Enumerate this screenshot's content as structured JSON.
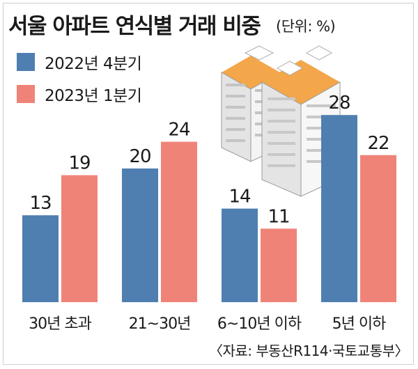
{
  "header": {
    "title": "서울 아파트 연식별 거래 비중",
    "unit": "(단위: %)"
  },
  "legend": [
    {
      "label": "2022년 4분기",
      "color": "#4f7fb0"
    },
    {
      "label": "2023년 1분기",
      "color": "#f08378"
    }
  ],
  "chart_data": {
    "type": "bar",
    "categories": [
      "30년 초과",
      "21~30년",
      "6~10년 이하",
      "5년 이하"
    ],
    "series": [
      {
        "name": "2022년 4분기",
        "values": [
          13,
          20,
          14,
          28
        ],
        "color": "#4f7fb0"
      },
      {
        "name": "2023년 1분기",
        "values": [
          19,
          24,
          11,
          22
        ],
        "color": "#f08378"
      }
    ],
    "ylim": [
      0,
      30
    ],
    "grid": false,
    "legend_position": "top-left"
  },
  "illustration": {
    "icon": "apartment-buildings-icon"
  },
  "footer": {
    "source": "〈자료: 부동산R114·국토교통부〉"
  }
}
